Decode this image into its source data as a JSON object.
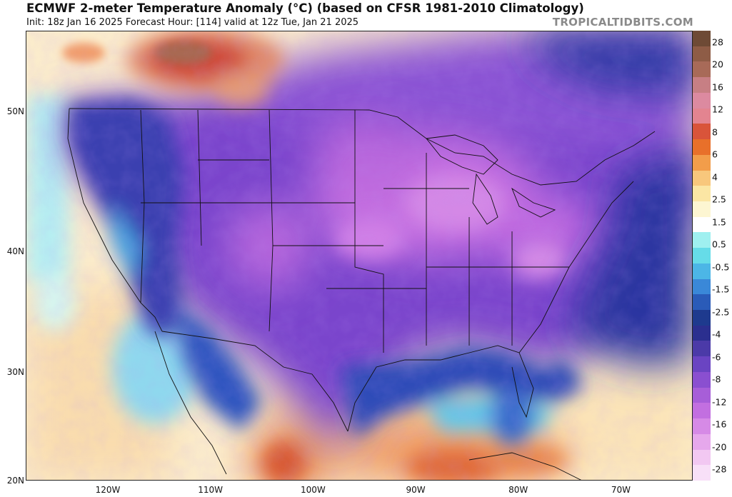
{
  "header": {
    "title": "ECMWF 2-meter Temperature Anomaly (°C) (based on CFSR 1981-2010 Climatology)",
    "subtitle": "Init: 18z Jan 16 2025   Forecast Hour: [114]   valid at 12z Tue, Jan 21 2025",
    "brand": "TROPICALTIDBITS.COM"
  },
  "map": {
    "lon_range": [
      -128,
      -63
    ],
    "lat_range": [
      20,
      55
    ],
    "lat_labels": [
      {
        "lat": 50,
        "label": "50N"
      },
      {
        "lat": 40,
        "label": "40N"
      },
      {
        "lat": 30,
        "label": "30N"
      },
      {
        "lat": 20,
        "label": "20N"
      }
    ],
    "lon_labels": [
      {
        "lon": -120,
        "label": "120W"
      },
      {
        "lon": -110,
        "label": "110W"
      },
      {
        "lon": -100,
        "label": "100W"
      },
      {
        "lon": -90,
        "label": "90W"
      },
      {
        "lon": -80,
        "label": "80W"
      },
      {
        "lon": -70,
        "label": "70W"
      }
    ]
  },
  "colorbar": {
    "labels": [
      "28",
      "20",
      "16",
      "12",
      "8",
      "6",
      "4",
      "2.5",
      "1.5",
      "0.5",
      "-0.5",
      "-1.5",
      "-2.5",
      "-4",
      "-6",
      "-8",
      "-12",
      "-16",
      "-20",
      "-28"
    ],
    "colors": [
      "#6e4a35",
      "#8e5c46",
      "#a86a58",
      "#c77f84",
      "#dc8aa0",
      "#e38490",
      "#d9543a",
      "#e8702a",
      "#f29d4a",
      "#f8c77c",
      "#fbe6a4",
      "#fdf6d2",
      "#ffffff",
      "#9ff0f0",
      "#66dce8",
      "#4cb6e6",
      "#3a88d8",
      "#2a5bb8",
      "#1e3a8e",
      "#2b2f8f",
      "#4b3aa8",
      "#6a44c2",
      "#8a4fd0",
      "#a75ed8",
      "#c26fe0",
      "#d68ae6",
      "#e6a8ec",
      "#f2c8f2",
      "#f8e0f8"
    ]
  }
}
